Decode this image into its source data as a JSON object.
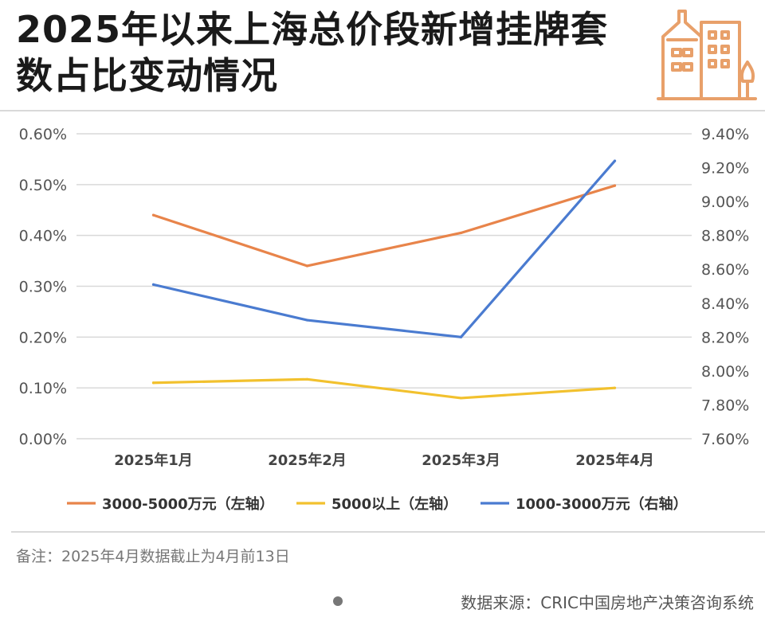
{
  "header": {
    "title": "2025年以来上海总价段新增挂牌套数占比变动情况"
  },
  "chart_data": {
    "type": "line",
    "categories": [
      "2025年1月",
      "2025年2月",
      "2025年3月",
      "2025年4月"
    ],
    "series": [
      {
        "name": "3000-5000万元（左轴）",
        "axis": "left",
        "color": "#E8844A",
        "values": [
          0.44,
          0.34,
          0.405,
          0.498
        ]
      },
      {
        "name": "5000以上（左轴）",
        "axis": "left",
        "color": "#F2C12E",
        "values": [
          0.11,
          0.117,
          0.08,
          0.1
        ]
      },
      {
        "name": "1000-3000万元（右轴）",
        "axis": "right",
        "color": "#4A7BD0",
        "values": [
          8.51,
          8.3,
          8.2,
          9.24
        ]
      }
    ],
    "y_left": {
      "range": [
        0,
        0.6
      ],
      "ticks": [
        "0.00%",
        "0.10%",
        "0.20%",
        "0.30%",
        "0.40%",
        "0.50%",
        "0.60%"
      ]
    },
    "y_right": {
      "range": [
        7.6,
        9.4
      ],
      "ticks": [
        "7.60%",
        "7.80%",
        "8.00%",
        "8.20%",
        "8.40%",
        "8.60%",
        "8.80%",
        "9.00%",
        "9.20%",
        "9.40%"
      ]
    },
    "grid": true,
    "legend": "bottom"
  },
  "footer": {
    "note": "备注：2025年4月数据截止为4月前13日",
    "source": "数据来源：CRIC中国房地产决策咨询系统"
  },
  "colors": {
    "grid": "#d9d9d9",
    "axis_text": "#555555",
    "logo": "#E8A06A"
  },
  "icons": {
    "logo": "building-logo-icon"
  }
}
